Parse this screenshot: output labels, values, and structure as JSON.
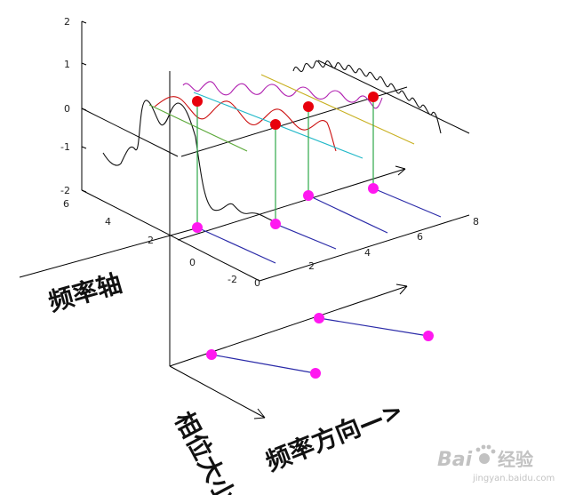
{
  "upper_plot": {
    "z_ticks": [
      "2",
      "1",
      "0",
      "-1",
      "-2"
    ],
    "y_ticks": [
      "6",
      "4",
      "2",
      "0",
      "-2"
    ],
    "x_ticks": [
      "0",
      "2",
      "4",
      "6",
      "8"
    ]
  },
  "labels": {
    "freq_axis": "频率轴",
    "phase_magnitude": "相位大小",
    "freq_direction": "频率方向—>"
  },
  "watermark": {
    "brand": "Bai",
    "brand_suffix": "百度",
    "sub": "经验",
    "url": "jingyan.baidu.com"
  },
  "colors": {
    "marker_red": "#e8000c",
    "marker_magenta": "#ff18f0",
    "stem_green": "#2ea84a",
    "line_blue": "#2a2aa8",
    "wave_red": "#cc1010",
    "wave_purple": "#b020b0",
    "wave_cyan": "#20b8c8",
    "wave_yellow": "#c8b020",
    "wave_black": "#111111"
  }
}
